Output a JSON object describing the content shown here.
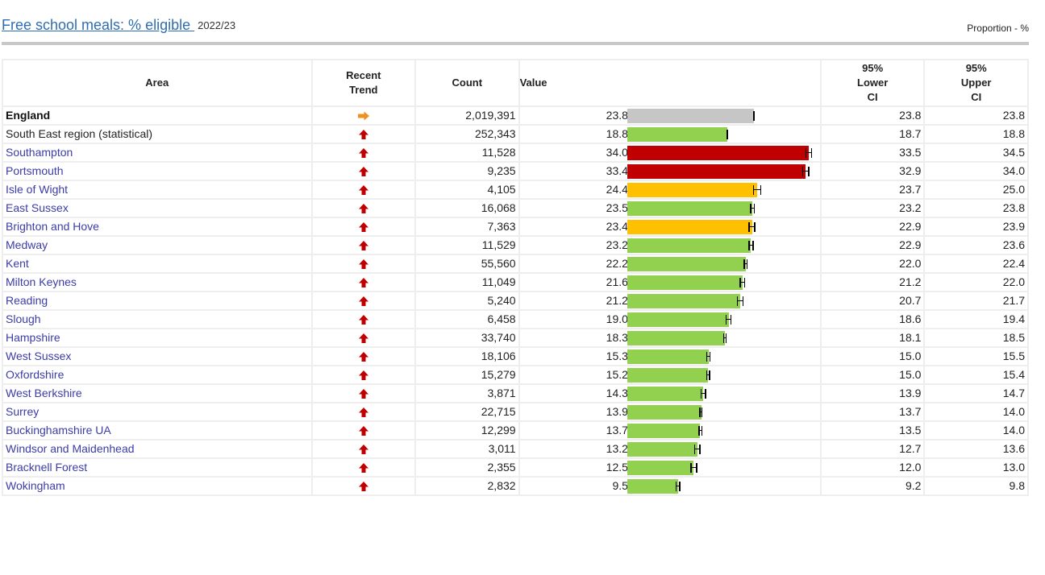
{
  "header": {
    "title": "Free school meals: % eligible ",
    "period": "2022/23",
    "unit": "Proportion - %"
  },
  "columns": {
    "area": "Area",
    "trend_line1": "Recent",
    "trend_line2": "Trend",
    "count": "Count",
    "value": "Value",
    "lci_line1": "95%",
    "lci_line2": "Lower",
    "lci_line3": "CI",
    "uci_line1": "95%",
    "uci_line2": "Upper",
    "uci_line3": "CI"
  },
  "colors": {
    "benchmark_grey": "#c6c6c6",
    "similar_green": "#92d050",
    "worse_red": "#c00000",
    "amber": "#ffc000",
    "trend_up": "#c00000",
    "trend_flat": "#f0901e"
  },
  "chart_data": {
    "type": "bar",
    "orientation": "horizontal",
    "xlim": [
      0,
      35
    ],
    "categories": [
      "England",
      "South East region (statistical)",
      "Southampton",
      "Portsmouth",
      "Isle of Wight",
      "East Sussex",
      "Brighton and Hove",
      "Medway",
      "Kent",
      "Milton Keynes",
      "Reading",
      "Slough",
      "Hampshire",
      "West Sussex",
      "Oxfordshire",
      "West Berkshire",
      "Surrey",
      "Buckinghamshire UA",
      "Windsor and Maidenhead",
      "Bracknell Forest",
      "Wokingham"
    ]
  },
  "rows": [
    {
      "area": "England",
      "style": "bold",
      "trend": "right",
      "count": "2,019,391",
      "value": "23.8",
      "lci": "23.8",
      "uci": "23.8",
      "v": 23.8,
      "lo": 23.8,
      "hi": 23.8,
      "color": "grey"
    },
    {
      "area": "South East region (statistical)",
      "style": "plain",
      "trend": "up",
      "count": "252,343",
      "value": "18.8",
      "lci": "18.7",
      "uci": "18.8",
      "v": 18.8,
      "lo": 18.7,
      "hi": 18.8,
      "color": "green"
    },
    {
      "area": "Southampton",
      "style": "link",
      "trend": "up",
      "count": "11,528",
      "value": "34.0",
      "lci": "33.5",
      "uci": "34.5",
      "v": 34.0,
      "lo": 33.5,
      "hi": 34.5,
      "color": "red"
    },
    {
      "area": "Portsmouth",
      "style": "link",
      "trend": "up",
      "count": "9,235",
      "value": "33.4",
      "lci": "32.9",
      "uci": "34.0",
      "v": 33.4,
      "lo": 32.9,
      "hi": 34.0,
      "color": "red"
    },
    {
      "area": "Isle of Wight",
      "style": "link",
      "trend": "up",
      "count": "4,105",
      "value": "24.4",
      "lci": "23.7",
      "uci": "25.0",
      "v": 24.4,
      "lo": 23.7,
      "hi": 25.0,
      "color": "amber"
    },
    {
      "area": "East Sussex",
      "style": "link",
      "trend": "up",
      "count": "16,068",
      "value": "23.5",
      "lci": "23.2",
      "uci": "23.8",
      "v": 23.5,
      "lo": 23.2,
      "hi": 23.8,
      "color": "green"
    },
    {
      "area": "Brighton and Hove",
      "style": "link",
      "trend": "up",
      "count": "7,363",
      "value": "23.4",
      "lci": "22.9",
      "uci": "23.9",
      "v": 23.4,
      "lo": 22.9,
      "hi": 23.9,
      "color": "amber"
    },
    {
      "area": "Medway",
      "style": "link",
      "trend": "up",
      "count": "11,529",
      "value": "23.2",
      "lci": "22.9",
      "uci": "23.6",
      "v": 23.2,
      "lo": 22.9,
      "hi": 23.6,
      "color": "green"
    },
    {
      "area": "Kent",
      "style": "link",
      "trend": "up",
      "count": "55,560",
      "value": "22.2",
      "lci": "22.0",
      "uci": "22.4",
      "v": 22.2,
      "lo": 22.0,
      "hi": 22.4,
      "color": "green"
    },
    {
      "area": "Milton Keynes",
      "style": "link",
      "trend": "up",
      "count": "11,049",
      "value": "21.6",
      "lci": "21.2",
      "uci": "22.0",
      "v": 21.6,
      "lo": 21.2,
      "hi": 22.0,
      "color": "green"
    },
    {
      "area": "Reading",
      "style": "link",
      "trend": "up",
      "count": "5,240",
      "value": "21.2",
      "lci": "20.7",
      "uci": "21.7",
      "v": 21.2,
      "lo": 20.7,
      "hi": 21.7,
      "color": "green"
    },
    {
      "area": "Slough",
      "style": "link",
      "trend": "up",
      "count": "6,458",
      "value": "19.0",
      "lci": "18.6",
      "uci": "19.4",
      "v": 19.0,
      "lo": 18.6,
      "hi": 19.4,
      "color": "green"
    },
    {
      "area": "Hampshire",
      "style": "link",
      "trend": "up",
      "count": "33,740",
      "value": "18.3",
      "lci": "18.1",
      "uci": "18.5",
      "v": 18.3,
      "lo": 18.1,
      "hi": 18.5,
      "color": "green"
    },
    {
      "area": "West Sussex",
      "style": "link",
      "trend": "up",
      "count": "18,106",
      "value": "15.3",
      "lci": "15.0",
      "uci": "15.5",
      "v": 15.3,
      "lo": 15.0,
      "hi": 15.5,
      "color": "green"
    },
    {
      "area": "Oxfordshire",
      "style": "link",
      "trend": "up",
      "count": "15,279",
      "value": "15.2",
      "lci": "15.0",
      "uci": "15.4",
      "v": 15.2,
      "lo": 15.0,
      "hi": 15.4,
      "color": "green"
    },
    {
      "area": "West Berkshire",
      "style": "link",
      "trend": "up",
      "count": "3,871",
      "value": "14.3",
      "lci": "13.9",
      "uci": "14.7",
      "v": 14.3,
      "lo": 13.9,
      "hi": 14.7,
      "color": "green"
    },
    {
      "area": "Surrey",
      "style": "link",
      "trend": "up",
      "count": "22,715",
      "value": "13.9",
      "lci": "13.7",
      "uci": "14.0",
      "v": 13.9,
      "lo": 13.7,
      "hi": 14.0,
      "color": "green"
    },
    {
      "area": "Buckinghamshire UA",
      "style": "link",
      "trend": "up",
      "count": "12,299",
      "value": "13.7",
      "lci": "13.5",
      "uci": "14.0",
      "v": 13.7,
      "lo": 13.5,
      "hi": 14.0,
      "color": "green"
    },
    {
      "area": "Windsor and Maidenhead",
      "style": "link",
      "trend": "up",
      "count": "3,011",
      "value": "13.2",
      "lci": "12.7",
      "uci": "13.6",
      "v": 13.2,
      "lo": 12.7,
      "hi": 13.6,
      "color": "green"
    },
    {
      "area": "Bracknell Forest",
      "style": "link",
      "trend": "up",
      "count": "2,355",
      "value": "12.5",
      "lci": "12.0",
      "uci": "13.0",
      "v": 12.5,
      "lo": 12.0,
      "hi": 13.0,
      "color": "green"
    },
    {
      "area": "Wokingham",
      "style": "link",
      "trend": "up",
      "count": "2,832",
      "value": "9.5",
      "lci": "9.2",
      "uci": "9.8",
      "v": 9.5,
      "lo": 9.2,
      "hi": 9.8,
      "color": "green"
    }
  ]
}
